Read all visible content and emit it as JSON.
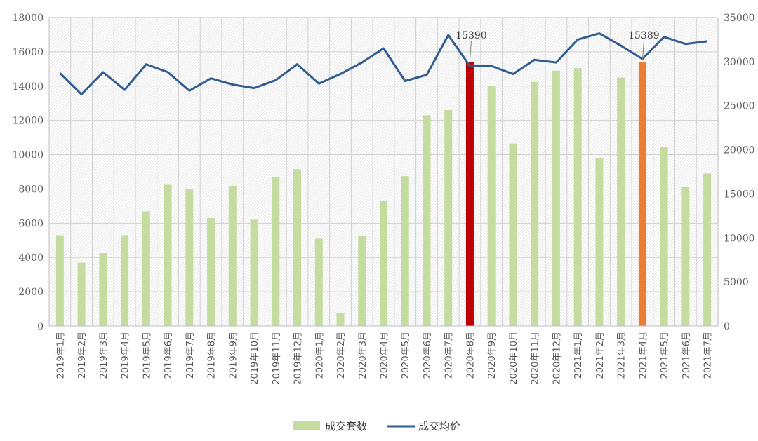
{
  "chart_data": {
    "type": "bar",
    "categories": [
      "2019年1月",
      "2019年2月",
      "2019年3月",
      "2019年4月",
      "2019年5月",
      "2019年6月",
      "2019年7月",
      "2019年8月",
      "2019年9月",
      "2019年10月",
      "2019年11月",
      "2019年12月",
      "2020年1月",
      "2020年2月",
      "2020年3月",
      "2020年4月",
      "2020年5月",
      "2020年6月",
      "2020年7月",
      "2020年8月",
      "2020年9月",
      "2020年10月",
      "2020年11月",
      "2020年12月",
      "2021年1月",
      "2021年2月",
      "2021年3月",
      "2021年4月",
      "2021年5月",
      "2021年6月",
      "2021年7月"
    ],
    "series": [
      {
        "name": "成交套数",
        "type": "bar",
        "axis": "left",
        "color": "#c5dca0",
        "values": [
          5300,
          3700,
          4250,
          5300,
          6700,
          8250,
          8000,
          6300,
          8150,
          6200,
          8700,
          9150,
          5100,
          750,
          5250,
          7300,
          8750,
          12300,
          12600,
          15390,
          14000,
          10650,
          14250,
          14900,
          15050,
          9800,
          14500,
          15389,
          10450,
          8100,
          8900
        ],
        "highlights": [
          {
            "index": 19,
            "color": "#c00000",
            "label": "15390"
          },
          {
            "index": 27,
            "color": "#ed7d31",
            "label": "15389"
          }
        ]
      },
      {
        "name": "成交均价",
        "type": "line",
        "axis": "right",
        "color": "#2f5d8f",
        "values": [
          28700,
          26300,
          28800,
          26800,
          29700,
          28800,
          26700,
          28100,
          27400,
          27000,
          27900,
          29700,
          27500,
          28600,
          29900,
          31500,
          27800,
          28500,
          33000,
          29500,
          29500,
          28600,
          30200,
          29900,
          32500,
          33200,
          31800,
          30300,
          32800,
          32000,
          32300
        ]
      }
    ],
    "y_left": {
      "min": 0,
      "max": 18000,
      "step": 2000
    },
    "y_right": {
      "min": 0,
      "max": 35000,
      "step": 5000
    },
    "grid": true,
    "legend_position": "bottom",
    "title": "",
    "xlabel": "",
    "ylabel": ""
  }
}
